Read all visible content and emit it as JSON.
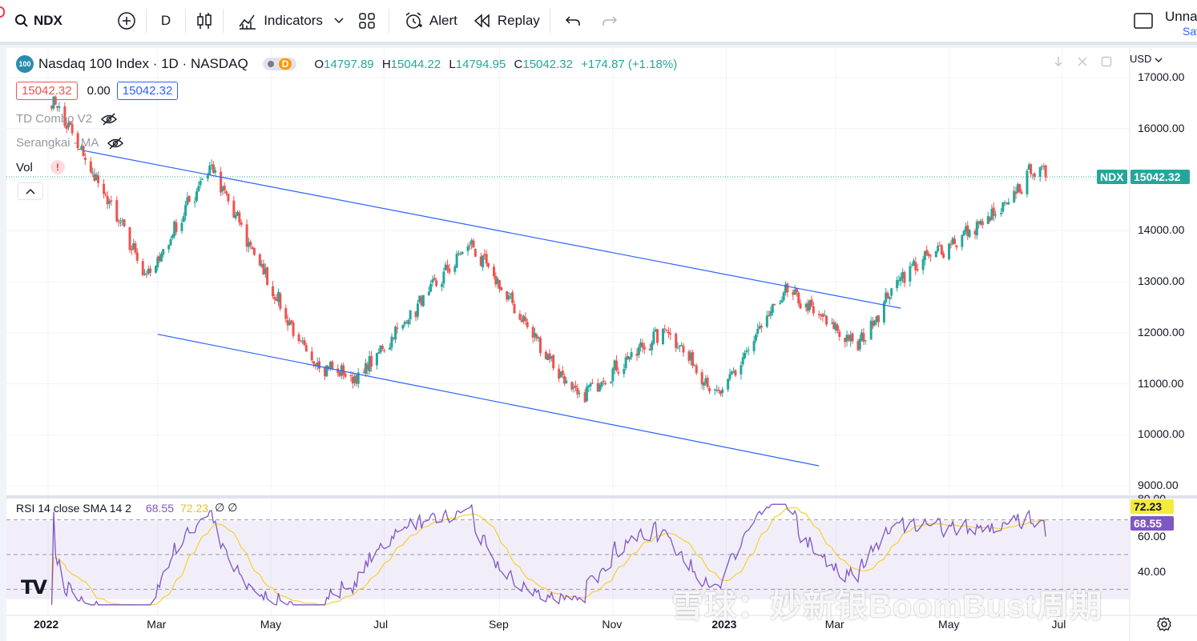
{
  "toolbar": {
    "symbol": "NDX",
    "interval": "D",
    "indicators_label": "Indicators",
    "alert_label": "Alert",
    "replay_label": "Replay",
    "layout_name": "Unna",
    "layout_status": "Sav"
  },
  "header": {
    "logo_text": "100",
    "title": "Nasdaq 100 Index · 1D · NASDAQ",
    "badge": "D",
    "o_label": "O",
    "o_value": "14797.89",
    "h_label": "H",
    "h_value": "15044.22",
    "l_label": "L",
    "l_value": "14794.95",
    "c_label": "C",
    "c_value": "15042.32",
    "change": "+174.87 (+1.18%)",
    "bid": "15042.32",
    "spread": "0.00",
    "ask": "15042.32"
  },
  "indicators": [
    {
      "name": "TD Combo V2"
    },
    {
      "name": "Serangkai - MA"
    },
    {
      "name": "Vol",
      "warning": "!"
    }
  ],
  "rsi": {
    "label": "RSI 14 close SMA 14 2",
    "rsi_value": "68.55",
    "sma_value": "72.23",
    "extra": "∅ ∅"
  },
  "price_axis": {
    "currency": "USD",
    "ticks": [
      "17000.00",
      "16000.00",
      "15000.00",
      "14000.00",
      "13000.00",
      "12000.00",
      "11000.00",
      "10000.00",
      "9000.00"
    ],
    "last_symbol": "NDX",
    "last_value": "15042.32"
  },
  "rsi_axis": {
    "ticks": [
      "60.00",
      "40.00"
    ],
    "top_tick": "80.00"
  },
  "time_axis": {
    "ticks": [
      "2022",
      "Mar",
      "May",
      "Jul",
      "Sep",
      "Nov",
      "2023",
      "Mar",
      "May",
      "Jul"
    ]
  },
  "watermark": "雪球：妙新银BoomBust周期",
  "brand": "TV",
  "colors": {
    "up": "#26a69a",
    "down": "#ef5350",
    "trend": "#2962ff",
    "rsi": "#7e57c2",
    "rsi_sma": "#f5d033"
  },
  "chart_data": {
    "type": "candlestick",
    "ylim": [
      9000,
      17000
    ],
    "x_range": [
      "2022-01",
      "2023-07"
    ],
    "last_close": 15042.32,
    "swing_points": [
      {
        "date": "2022-01-03",
        "value": 16600
      },
      {
        "date": "2022-02-24",
        "value": 13050
      },
      {
        "date": "2022-03-29",
        "value": 15260
      },
      {
        "date": "2022-05-20",
        "value": 11500
      },
      {
        "date": "2022-06-16",
        "value": 11050
      },
      {
        "date": "2022-08-16",
        "value": 13720
      },
      {
        "date": "2022-10-13",
        "value": 10680
      },
      {
        "date": "2022-11-30",
        "value": 12050
      },
      {
        "date": "2022-12-28",
        "value": 10700
      },
      {
        "date": "2023-02-02",
        "value": 12800
      },
      {
        "date": "2023-03-13",
        "value": 11700
      },
      {
        "date": "2023-04-05",
        "value": 13100
      },
      {
        "date": "2023-05-31",
        "value": 14400
      },
      {
        "date": "2023-06-15",
        "value": 15200
      },
      {
        "date": "2023-06-22",
        "value": 15042
      }
    ],
    "trendlines": [
      {
        "from": [
          "2022-01-20",
          15570
        ],
        "to": [
          "2023-04-05",
          12480
        ]
      },
      {
        "from": [
          "2022-03-01",
          11970
        ],
        "to": [
          "2023-02-20",
          9390
        ]
      }
    ],
    "rsi_ylim": [
      20,
      80
    ]
  }
}
